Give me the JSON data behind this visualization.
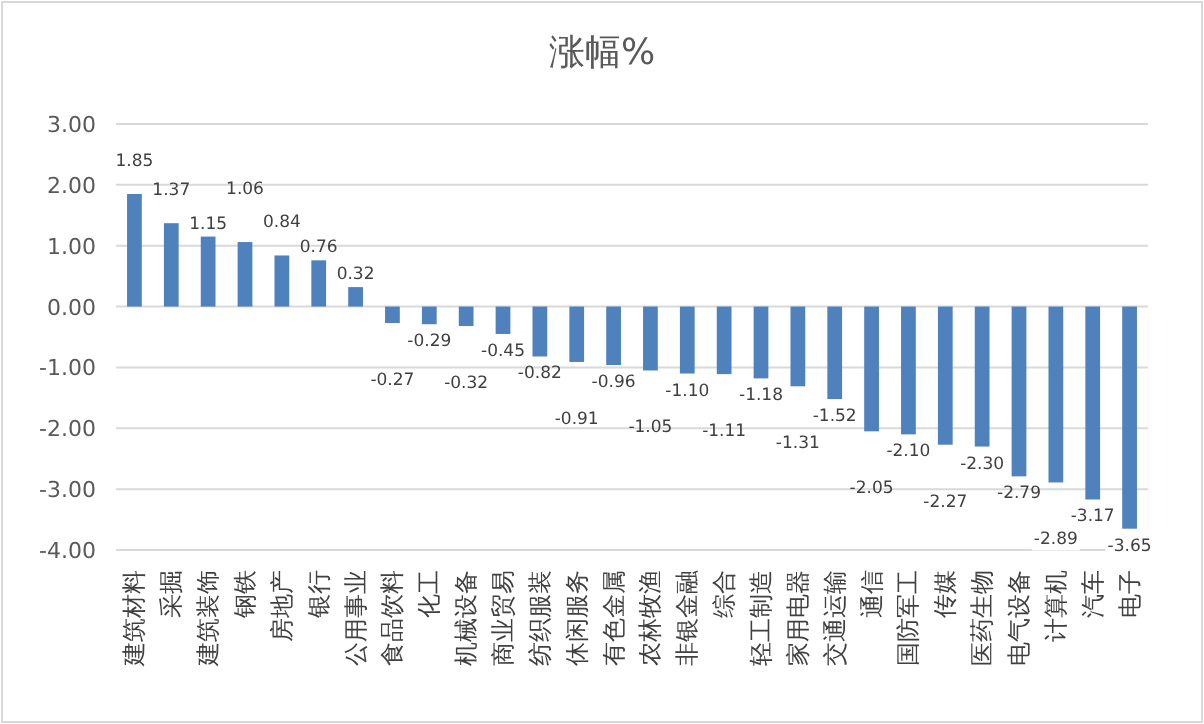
{
  "chart_data": {
    "type": "bar",
    "title": "涨幅%",
    "categories": [
      "建筑材料",
      "采掘",
      "建筑装饰",
      "钢铁",
      "房地产",
      "银行",
      "公用事业",
      "食品饮料",
      "化工",
      "机械设备",
      "商业贸易",
      "纺织服装",
      "休闲服务",
      "有色金属",
      "农林牧渔",
      "非银金融",
      "综合",
      "轻工制造",
      "家用电器",
      "交通运输",
      "通信",
      "国防军工",
      "传媒",
      "医药生物",
      "电气设备",
      "计算机",
      "汽车",
      "电子"
    ],
    "values": [
      1.85,
      1.37,
      1.15,
      1.06,
      0.84,
      0.76,
      0.32,
      -0.27,
      -0.29,
      -0.32,
      -0.45,
      -0.82,
      -0.91,
      -0.96,
      -1.05,
      -1.1,
      -1.11,
      -1.18,
      -1.31,
      -1.52,
      -2.05,
      -2.1,
      -2.27,
      -2.3,
      -2.79,
      -2.89,
      -3.17,
      -3.65
    ],
    "value_labels": [
      "1.85",
      "1.37",
      "1.15",
      "1.06",
      "0.84",
      "0.76",
      "0.32",
      "-0.27",
      "-0.29",
      "-0.32",
      "-0.45",
      "-0.82",
      "-0.91",
      "-0.96",
      "-1.05",
      "-1.10",
      "-1.11",
      "-1.18",
      "-1.31",
      "-1.52",
      "-2.05",
      "-2.10",
      "-2.27",
      "-2.30",
      "-2.79",
      "-2.89",
      "-3.17",
      "-3.65"
    ],
    "color": "#4f81bd",
    "ylim": [
      -4,
      3
    ],
    "yticks": [
      {
        "value": -4,
        "label": "-4.00"
      },
      {
        "value": -3,
        "label": "-3.00"
      },
      {
        "value": -2,
        "label": "-2.00"
      },
      {
        "value": -1,
        "label": "-1.00"
      },
      {
        "value": 0,
        "label": "0.00"
      },
      {
        "value": 1,
        "label": "1.00"
      },
      {
        "value": 2,
        "label": "2.00"
      },
      {
        "value": 3,
        "label": "3.00"
      }
    ],
    "grid": "y"
  }
}
